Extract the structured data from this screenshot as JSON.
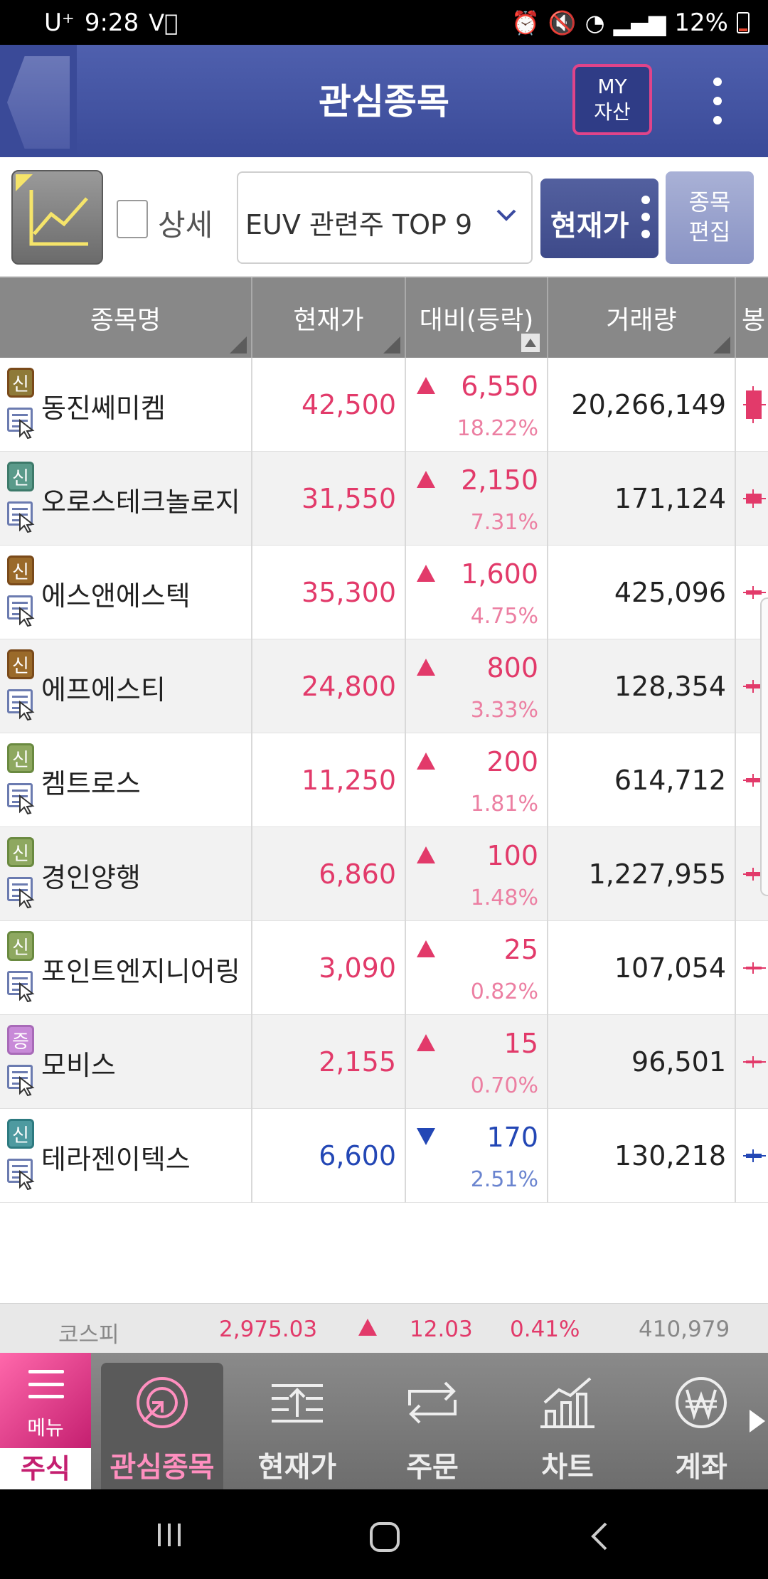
{
  "status_bar": {
    "carrier": "U⁺",
    "time": "9:28",
    "battery": "12%"
  },
  "header": {
    "title": "관심종목",
    "my_asset_line1": "MY",
    "my_asset_line2": "자산"
  },
  "toolbar": {
    "detail_label": "상세",
    "group_name": "EUV 관련주 TOP 9",
    "price_button": "현재가",
    "edit_line1": "종목",
    "edit_line2": "편집"
  },
  "table": {
    "columns": [
      "종목명",
      "현재가",
      "대비(등락)",
      "거래량",
      "봉"
    ],
    "rows": [
      {
        "badge": "신",
        "name": "동진쎄미켐",
        "price": "42,500",
        "change": "6,550",
        "pct": "18.22%",
        "volume": "20,266,149",
        "dir": "up"
      },
      {
        "badge": "신",
        "name": "오로스테크놀로지",
        "price": "31,550",
        "change": "2,150",
        "pct": "7.31%",
        "volume": "171,124",
        "dir": "up"
      },
      {
        "badge": "신",
        "name": "에스앤에스텍",
        "price": "35,300",
        "change": "1,600",
        "pct": "4.75%",
        "volume": "425,096",
        "dir": "up"
      },
      {
        "badge": "신",
        "name": "에프에스티",
        "price": "24,800",
        "change": "800",
        "pct": "3.33%",
        "volume": "128,354",
        "dir": "up"
      },
      {
        "badge": "신",
        "name": "켐트로스",
        "price": "11,250",
        "change": "200",
        "pct": "1.81%",
        "volume": "614,712",
        "dir": "up"
      },
      {
        "badge": "신",
        "name": "경인양행",
        "price": "6,860",
        "change": "100",
        "pct": "1.48%",
        "volume": "1,227,955",
        "dir": "up"
      },
      {
        "badge": "신",
        "name": "포인트엔지니어링",
        "price": "3,090",
        "change": "25",
        "pct": "0.82%",
        "volume": "107,054",
        "dir": "up"
      },
      {
        "badge": "증",
        "name": "모비스",
        "price": "2,155",
        "change": "15",
        "pct": "0.70%",
        "volume": "96,501",
        "dir": "up"
      },
      {
        "badge": "신",
        "name": "테라젠이텍스",
        "price": "6,600",
        "change": "170",
        "pct": "2.51%",
        "volume": "130,218",
        "dir": "down"
      }
    ]
  },
  "index_bar": {
    "name": "코스피",
    "value": "2,975.03",
    "change": "12.03",
    "pct": "0.41%",
    "volume": "410,979"
  },
  "bottom_nav": {
    "menu_label": "메뉴",
    "stock_label": "주식",
    "items": [
      "관심종목",
      "현재가",
      "주문",
      "차트",
      "계좌"
    ]
  },
  "colors": {
    "up": "#e23a6a",
    "down": "#2347b5",
    "header": "#4553a3",
    "accent": "#e0448a"
  }
}
